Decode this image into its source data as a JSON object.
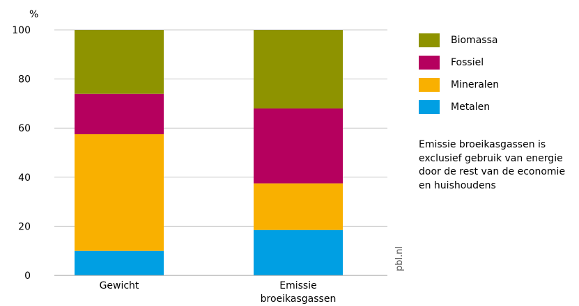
{
  "chart_data": {
    "type": "bar",
    "stacked": true,
    "unit_label": "%",
    "source": "pbl.nl",
    "categories": [
      "Gewicht",
      "Emissie broeikasgassen"
    ],
    "series": [
      {
        "name": "Metalen",
        "color": "#009fe3",
        "values": [
          10,
          18.5
        ]
      },
      {
        "name": "Mineralen",
        "color": "#f9b000",
        "values": [
          47.5,
          19
        ]
      },
      {
        "name": "Fossiel",
        "color": "#b5005e",
        "values": [
          16.5,
          30.5
        ]
      },
      {
        "name": "Biomassa",
        "color": "#8e9300",
        "values": [
          26,
          32
        ]
      }
    ],
    "ylim": [
      0,
      100
    ],
    "yticks": [
      0,
      20,
      40,
      60,
      80,
      100
    ],
    "grid": true,
    "legend_position": "right",
    "note": "Emissie broeikasgassen is exclusief gebruik van energie door de rest van de economie en huishoudens"
  }
}
